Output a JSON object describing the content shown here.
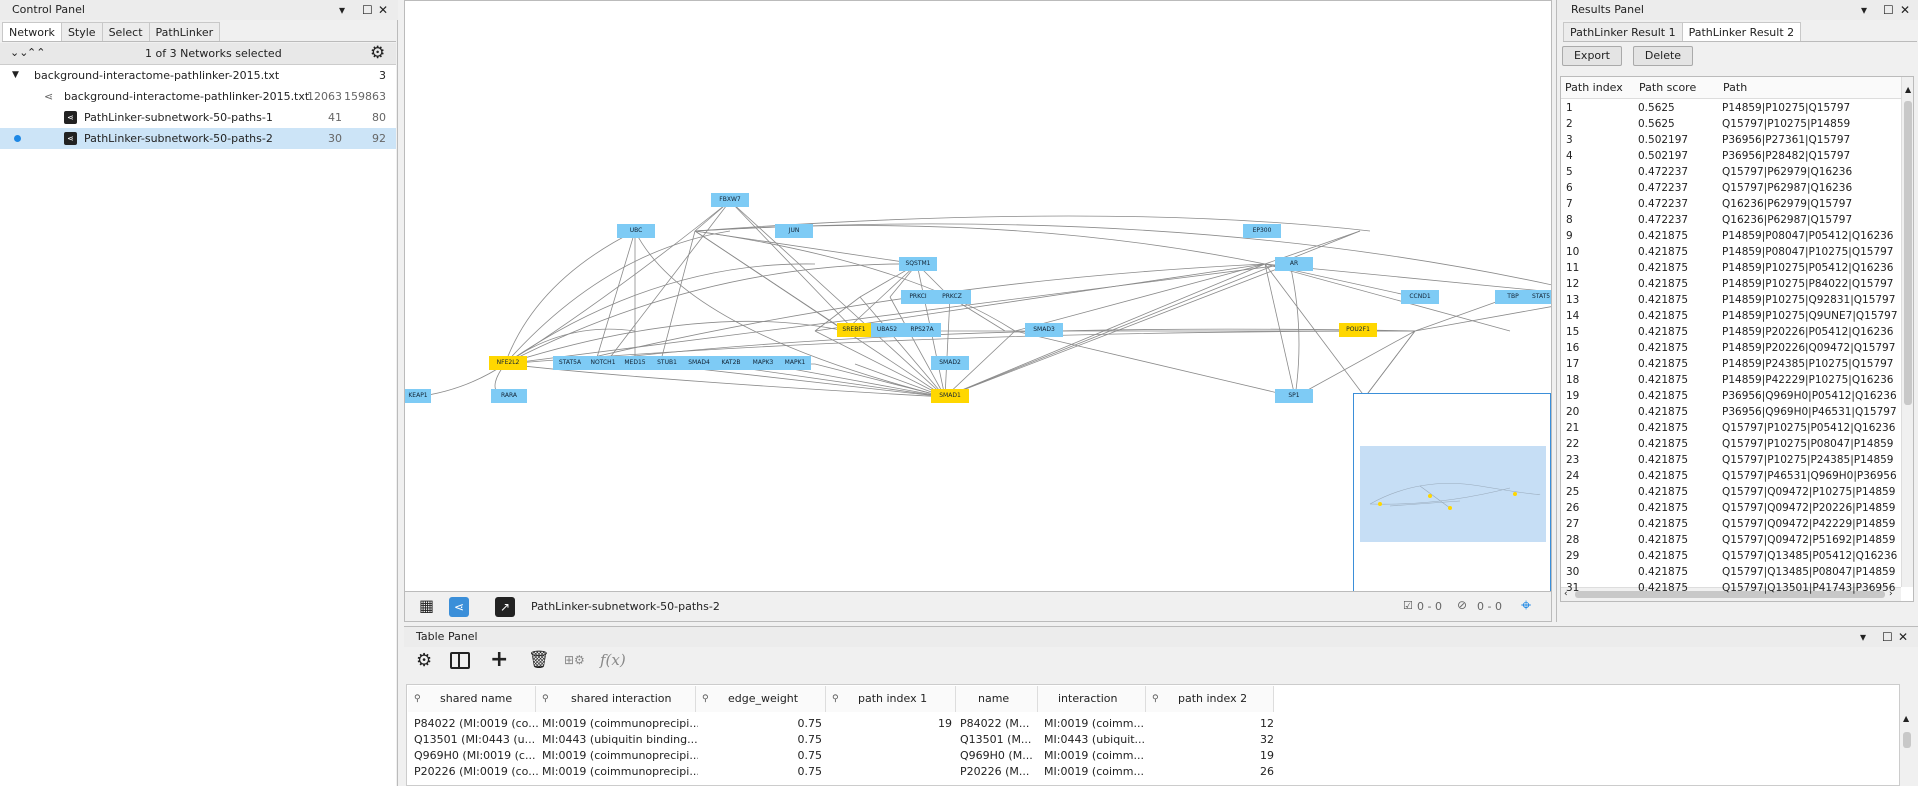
{
  "control_panel": {
    "title": "Control Panel",
    "tabs": [
      "Network",
      "Style",
      "Select",
      "PathLinker"
    ],
    "selected_info": "1 of 3 Networks selected",
    "tree": [
      {
        "label": "background-interactome-pathlinker-2015.txt",
        "count": "3"
      },
      {
        "label": "background-interactome-pathlinker-2015.txt",
        "nodes": "12063",
        "edges": "159863"
      },
      {
        "label": "PathLinker-subnetwork-50-paths-1",
        "nodes": "41",
        "edges": "80"
      },
      {
        "label": "PathLinker-subnetwork-50-paths-2",
        "nodes": "30",
        "edges": "92"
      }
    ]
  },
  "network_view": {
    "nodes": [
      {
        "label": "FBXW7",
        "gold": false
      },
      {
        "label": "UBC",
        "gold": false
      },
      {
        "label": "JUN",
        "gold": false
      },
      {
        "label": "EP300",
        "gold": false
      },
      {
        "label": "AR",
        "gold": false
      },
      {
        "label": "SQSTM1",
        "gold": false
      },
      {
        "label": "PRKCI",
        "gold": false
      },
      {
        "label": "PRKCZ",
        "gold": false
      },
      {
        "label": "CCND1",
        "gold": false
      },
      {
        "label": "TBP",
        "gold": false
      },
      {
        "label": "STAT5",
        "gold": false
      },
      {
        "label": "SREBF1",
        "gold": true
      },
      {
        "label": "UBA52",
        "gold": false
      },
      {
        "label": "RPS27A",
        "gold": false
      },
      {
        "label": "SMAD3",
        "gold": false
      },
      {
        "label": "POU2F1",
        "gold": true
      },
      {
        "label": "NFE2L2",
        "gold": true
      },
      {
        "label": "STAT5A",
        "gold": false
      },
      {
        "label": "NOTCH1",
        "gold": false
      },
      {
        "label": "MED15",
        "gold": false
      },
      {
        "label": "STUB1",
        "gold": false
      },
      {
        "label": "SMAD4",
        "gold": false
      },
      {
        "label": "KAT2B",
        "gold": false
      },
      {
        "label": "MAPK3",
        "gold": false
      },
      {
        "label": "MAPK1",
        "gold": false
      },
      {
        "label": "SMAD2",
        "gold": false
      },
      {
        "label": "KEAP1",
        "gold": false
      },
      {
        "label": "RARA",
        "gold": false
      },
      {
        "label": "SMAD1",
        "gold": true
      },
      {
        "label": "SP1",
        "gold": false
      }
    ],
    "current_network": "PathLinker-subnetwork-50-paths-2",
    "selected_nodes": "0 - 0",
    "hidden": "0 - 0"
  },
  "results_panel": {
    "title": "Results Panel",
    "tabs": [
      "PathLinker Result 1",
      "PathLinker Result 2"
    ],
    "export_label": "Export",
    "delete_label": "Delete",
    "columns": [
      "Path index",
      "Path score",
      "Path"
    ],
    "rows": [
      [
        "1",
        "0.5625",
        "P14859|P10275|Q15797"
      ],
      [
        "2",
        "0.5625",
        "Q15797|P10275|P14859"
      ],
      [
        "3",
        "0.502197",
        "P36956|P27361|Q15797"
      ],
      [
        "4",
        "0.502197",
        "P36956|P28482|Q15797"
      ],
      [
        "5",
        "0.472237",
        "Q15797|P62979|Q16236"
      ],
      [
        "6",
        "0.472237",
        "Q15797|P62987|Q16236"
      ],
      [
        "7",
        "0.472237",
        "Q16236|P62979|Q15797"
      ],
      [
        "8",
        "0.472237",
        "Q16236|P62987|Q15797"
      ],
      [
        "9",
        "0.421875",
        "P14859|P08047|P05412|Q16236"
      ],
      [
        "10",
        "0.421875",
        "P14859|P08047|P10275|Q15797"
      ],
      [
        "11",
        "0.421875",
        "P14859|P10275|P05412|Q16236"
      ],
      [
        "12",
        "0.421875",
        "P14859|P10275|P84022|Q15797"
      ],
      [
        "13",
        "0.421875",
        "P14859|P10275|Q92831|Q15797"
      ],
      [
        "14",
        "0.421875",
        "P14859|P10275|Q9UNE7|Q15797"
      ],
      [
        "15",
        "0.421875",
        "P14859|P20226|P05412|Q16236"
      ],
      [
        "16",
        "0.421875",
        "P14859|P20226|Q09472|Q15797"
      ],
      [
        "17",
        "0.421875",
        "P14859|P24385|P10275|Q15797"
      ],
      [
        "18",
        "0.421875",
        "P14859|P42229|P10275|Q16236"
      ],
      [
        "19",
        "0.421875",
        "P36956|Q969H0|P05412|Q16236"
      ],
      [
        "20",
        "0.421875",
        "P36956|Q969H0|P46531|Q15797"
      ],
      [
        "21",
        "0.421875",
        "Q15797|P10275|P05412|Q16236"
      ],
      [
        "22",
        "0.421875",
        "Q15797|P10275|P08047|P14859"
      ],
      [
        "23",
        "0.421875",
        "Q15797|P10275|P24385|P14859"
      ],
      [
        "24",
        "0.421875",
        "Q15797|P46531|Q969H0|P36956"
      ],
      [
        "25",
        "0.421875",
        "Q15797|Q09472|P10275|P14859"
      ],
      [
        "26",
        "0.421875",
        "Q15797|Q09472|P20226|P14859"
      ],
      [
        "27",
        "0.421875",
        "Q15797|Q09472|P42229|P14859"
      ],
      [
        "28",
        "0.421875",
        "Q15797|Q09472|P51692|P14859"
      ],
      [
        "29",
        "0.421875",
        "Q15797|Q13485|P05412|Q16236"
      ],
      [
        "30",
        "0.421875",
        "Q15797|Q13485|P08047|P14859"
      ],
      [
        "31",
        "0.421875",
        "Q15797|Q13501|P41743|P36956"
      ]
    ]
  },
  "table_panel": {
    "title": "Table Panel",
    "columns": [
      "shared name",
      "shared interaction",
      "edge_weight",
      "path index 1",
      "name",
      "interaction",
      "path index 2"
    ],
    "rows": [
      [
        "P84022 (MI:0019 (co...",
        "MI:0019 (coimmunoprecipi...",
        "0.75",
        "19",
        "P84022 (M...",
        "MI:0019 (coimm...",
        "12"
      ],
      [
        "Q13501 (MI:0443 (u...",
        "MI:0443 (ubiquitin binding...",
        "0.75",
        "",
        "Q13501 (M...",
        "MI:0443 (ubiquit...",
        "32"
      ],
      [
        "Q969H0 (MI:0019 (c...",
        "MI:0019 (coimmunoprecipi...",
        "0.75",
        "",
        "Q969H0 (M...",
        "MI:0019 (coimm...",
        "19"
      ],
      [
        "P20226 (MI:0019 (co...",
        "MI:0019 (coimmunoprecipi...",
        "0.75",
        "",
        "P20226 (M...",
        "MI:0019 (coimm...",
        "26"
      ]
    ]
  }
}
